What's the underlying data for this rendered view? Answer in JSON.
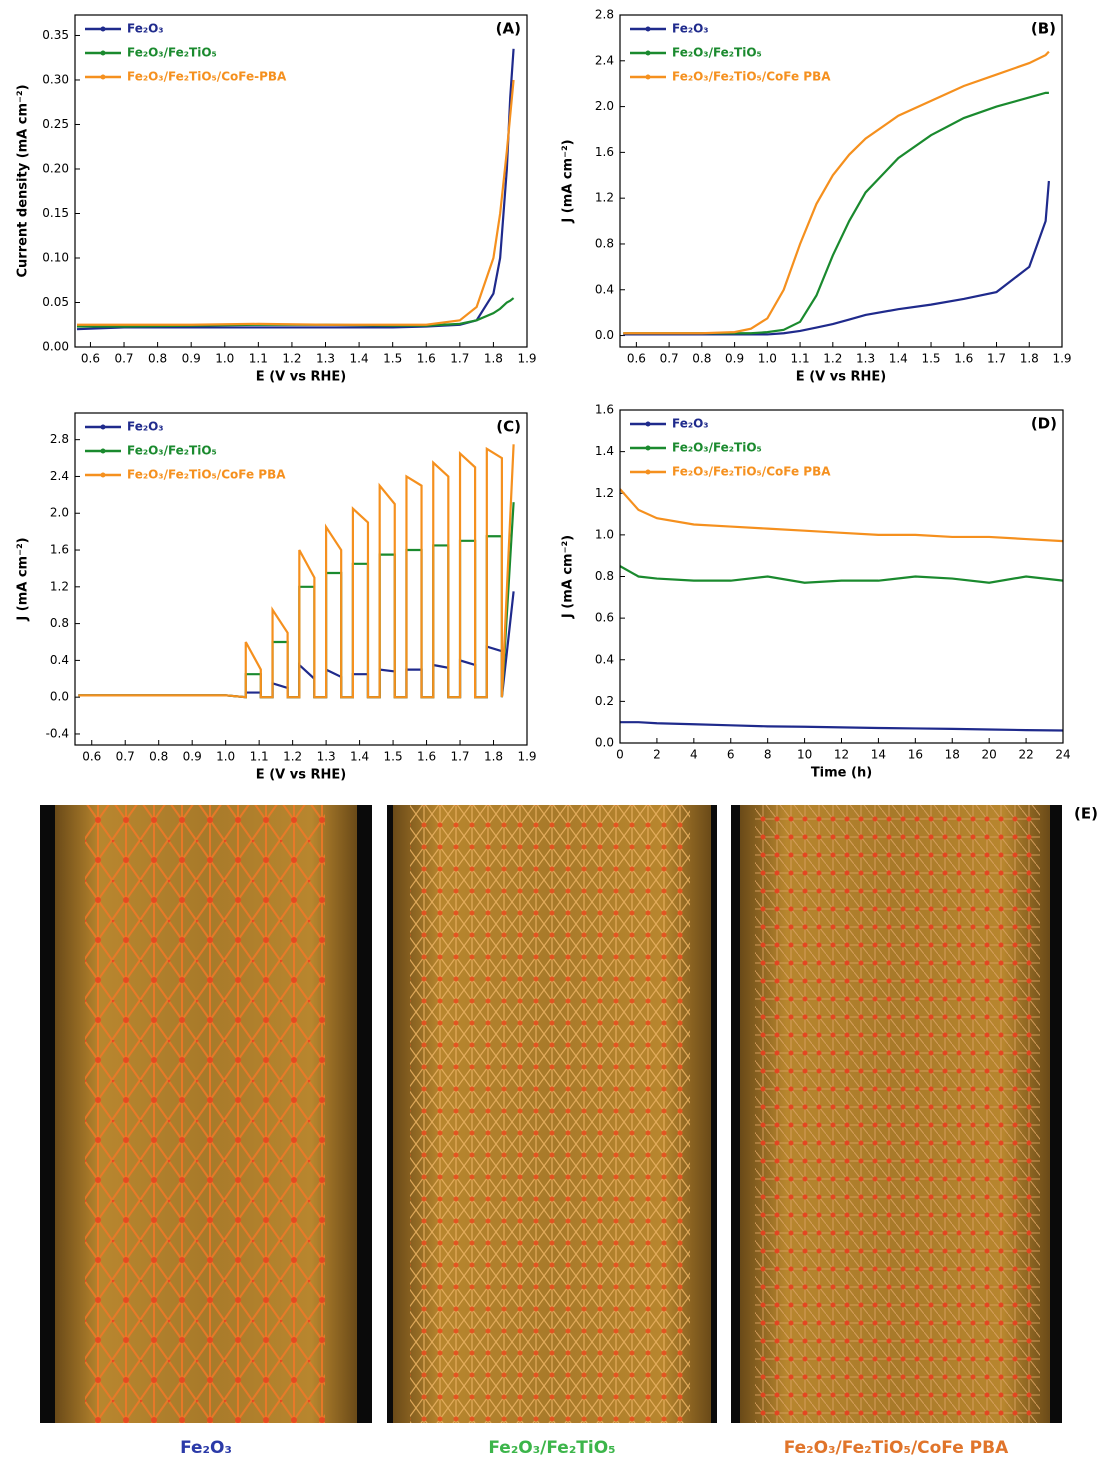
{
  "chart_data": [
    {
      "type": "line",
      "panel_label": "(A)",
      "x_label": "E (V vs RHE)",
      "y_label": "Current density (mA cm⁻²)",
      "legend": "upper left",
      "xlim": [
        0.554,
        1.9
      ],
      "ylim": [
        0,
        0.373
      ],
      "xticks": [
        0.6,
        0.7,
        0.8,
        0.9,
        {
          "value": 1.0,
          "label": "1.0"
        },
        1.1,
        1.2,
        1.3,
        1.4,
        1.5,
        1.6,
        1.7,
        1.8,
        1.9
      ],
      "yticks": [
        {
          "value": 0,
          "label": "0.00"
        },
        0.05,
        {
          "value": 0.1,
          "label": "0.10"
        },
        0.15,
        {
          "value": 0.2,
          "label": "0.20"
        },
        0.25,
        {
          "value": 0.3,
          "label": "0.30"
        },
        0.35
      ],
      "x": [
        0.56,
        0.7,
        0.9,
        1.1,
        1.3,
        1.5,
        1.6,
        1.7,
        1.75,
        1.8,
        1.82,
        1.84,
        1.85,
        1.86
      ],
      "series": [
        {
          "name": "Fe₂O₃",
          "color": "#1f2a8c",
          "values": [
            0.02,
            0.022,
            0.022,
            0.022,
            0.022,
            0.022,
            0.023,
            0.025,
            0.03,
            0.06,
            0.1,
            0.2,
            0.28,
            0.335
          ]
        },
        {
          "name": "Fe₂O₃/Fe₂TiO₅",
          "color": "#1a8a2e",
          "values": [
            0.023,
            0.023,
            0.024,
            0.025,
            0.025,
            0.024,
            0.024,
            0.026,
            0.03,
            0.038,
            0.043,
            0.05,
            0.052,
            0.055
          ]
        },
        {
          "name": "Fe₂O₃/Fe₂TiO₅/CoFe-PBA",
          "color": "#f5901e",
          "values": [
            0.025,
            0.025,
            0.025,
            0.026,
            0.025,
            0.025,
            0.025,
            0.03,
            0.045,
            0.1,
            0.15,
            0.22,
            0.26,
            0.3
          ]
        }
      ]
    },
    {
      "type": "line",
      "panel_label": "(B)",
      "x_label": "E (V vs RHE)",
      "y_label": "J (mA cm⁻²)",
      "legend": "upper left",
      "xlim": [
        0.55,
        1.9
      ],
      "ylim": [
        -0.1,
        2.8
      ],
      "xticks": [
        0.6,
        0.7,
        0.8,
        0.9,
        {
          "value": 1.0,
          "label": "1.0"
        },
        1.1,
        1.2,
        1.3,
        1.4,
        1.5,
        1.6,
        1.7,
        1.8,
        1.9
      ],
      "yticks": [
        {
          "value": 0,
          "label": "0.0"
        },
        0.4,
        0.8,
        1.2,
        1.6,
        {
          "value": 2.0,
          "label": "2.0"
        },
        2.4,
        2.8
      ],
      "x": [
        0.56,
        0.8,
        0.9,
        0.95,
        1.0,
        1.05,
        1.1,
        1.15,
        1.2,
        1.25,
        1.3,
        1.4,
        1.5,
        1.6,
        1.7,
        1.8,
        1.85,
        1.86
      ],
      "series": [
        {
          "name": "Fe₂O₃",
          "color": "#1f2a8c",
          "values": [
            0.01,
            0.01,
            0.01,
            0.01,
            0.01,
            0.02,
            0.04,
            0.07,
            0.1,
            0.14,
            0.18,
            0.23,
            0.27,
            0.32,
            0.38,
            0.6,
            1.0,
            1.35
          ]
        },
        {
          "name": "Fe₂O₃/Fe₂TiO₅",
          "color": "#1a8a2e",
          "values": [
            0.02,
            0.02,
            0.02,
            0.02,
            0.03,
            0.05,
            0.12,
            0.35,
            0.7,
            1.0,
            1.25,
            1.55,
            1.75,
            1.9,
            2.0,
            2.08,
            2.12,
            2.12
          ]
        },
        {
          "name": "Fe₂O₃/Fe₂TiO₅/CoFe PBA",
          "color": "#f5901e",
          "values": [
            0.02,
            0.02,
            0.03,
            0.06,
            0.15,
            0.4,
            0.8,
            1.15,
            1.4,
            1.58,
            1.72,
            1.92,
            2.05,
            2.18,
            2.28,
            2.38,
            2.45,
            2.48
          ]
        }
      ]
    },
    {
      "type": "line",
      "panel_label": "(C)",
      "x_label": "E (V vs RHE)",
      "y_label": "J (mA cm⁻²)",
      "legend": "upper left",
      "xlim": [
        0.55,
        1.9
      ],
      "ylim": [
        -0.52,
        3.09
      ],
      "xticks": [
        0.6,
        0.7,
        0.8,
        0.9,
        {
          "value": 1.0,
          "label": "1.0"
        },
        1.1,
        1.2,
        1.3,
        1.4,
        1.5,
        1.6,
        1.7,
        1.8,
        1.9
      ],
      "yticks": [
        -0.4,
        {
          "value": 0,
          "label": "0.0"
        },
        0.4,
        0.8,
        1.2,
        1.6,
        {
          "value": 2.0,
          "label": "2.0"
        },
        2.4,
        2.8
      ],
      "x": [
        0.56,
        1.0,
        1.06,
        1.06,
        1.105,
        1.105,
        1.14,
        1.14,
        1.185,
        1.185,
        1.22,
        1.22,
        1.265,
        1.265,
        1.3,
        1.3,
        1.345,
        1.345,
        1.38,
        1.38,
        1.425,
        1.425,
        1.46,
        1.46,
        1.505,
        1.505,
        1.54,
        1.54,
        1.585,
        1.585,
        1.62,
        1.62,
        1.665,
        1.665,
        1.7,
        1.7,
        1.745,
        1.745,
        1.78,
        1.78,
        1.825,
        1.825,
        1.86
      ],
      "series": [
        {
          "name": "Fe₂O₃",
          "color": "#1f2a8c",
          "values": [
            0.02,
            0.02,
            0,
            0.05,
            0.05,
            0,
            0,
            0.15,
            0.1,
            0,
            0,
            0.35,
            0.2,
            0,
            0,
            0.3,
            0.22,
            0,
            0,
            0.25,
            0.25,
            0,
            0,
            0.3,
            0.28,
            0,
            0,
            0.3,
            0.3,
            0,
            0,
            0.35,
            0.32,
            0,
            0,
            0.4,
            0.35,
            0,
            0,
            0.55,
            0.5,
            0,
            1.15
          ]
        },
        {
          "name": "Fe₂O₃/Fe₂TiO₅",
          "color": "#1a8a2e",
          "values": [
            0.02,
            0.02,
            0,
            0.25,
            0.25,
            0,
            0,
            0.6,
            0.6,
            0,
            0,
            1.2,
            1.2,
            0,
            0,
            1.35,
            1.35,
            0,
            0,
            1.45,
            1.45,
            0,
            0,
            1.55,
            1.55,
            0,
            0,
            1.6,
            1.6,
            0,
            0,
            1.65,
            1.65,
            0,
            0,
            1.7,
            1.7,
            0,
            0,
            1.75,
            1.75,
            0,
            2.12
          ]
        },
        {
          "name": "Fe₂O₃/Fe₂TiO₅/CoFe PBA",
          "color": "#f5901e",
          "values": [
            0.02,
            0.02,
            0,
            0.6,
            0.3,
            0,
            0,
            0.95,
            0.7,
            0,
            0,
            1.6,
            1.3,
            0,
            0,
            1.85,
            1.6,
            0,
            0,
            2.05,
            1.9,
            0,
            0,
            2.3,
            2.1,
            0,
            0,
            2.4,
            2.3,
            0,
            0,
            2.55,
            2.4,
            0,
            0,
            2.65,
            2.5,
            0,
            0,
            2.7,
            2.6,
            0,
            2.75
          ]
        }
      ]
    },
    {
      "type": "line",
      "panel_label": "(D)",
      "x_label": "Time (h)",
      "y_label": "J (mA cm⁻²)",
      "legend": "upper left",
      "xlim": [
        0,
        24
      ],
      "ylim": [
        0,
        1.6
      ],
      "xticks": [
        0,
        2,
        4,
        6,
        8,
        10,
        12,
        14,
        16,
        18,
        20,
        22,
        24
      ],
      "yticks": [
        {
          "value": 0,
          "label": "0.0"
        },
        0.2,
        0.4,
        0.6,
        0.8,
        {
          "value": 1.0,
          "label": "1.0"
        },
        1.2,
        1.4,
        1.6
      ],
      "x": [
        0,
        1,
        2,
        4,
        6,
        8,
        10,
        12,
        14,
        16,
        18,
        20,
        22,
        24
      ],
      "series": [
        {
          "name": "Fe₂O₃",
          "color": "#1f2a8c",
          "values": [
            0.1,
            0.1,
            0.095,
            0.09,
            0.085,
            0.08,
            0.078,
            0.075,
            0.072,
            0.07,
            0.068,
            0.065,
            0.062,
            0.06
          ]
        },
        {
          "name": "Fe₂O₃/Fe₂TiO₅",
          "color": "#1a8a2e",
          "values": [
            0.85,
            0.8,
            0.79,
            0.78,
            0.78,
            0.8,
            0.77,
            0.78,
            0.78,
            0.8,
            0.79,
            0.77,
            0.8,
            0.78
          ]
        },
        {
          "name": "Fe₂O₃/Fe₂TiO₅/CoFe PBA",
          "color": "#f5901e",
          "values": [
            1.22,
            1.12,
            1.08,
            1.05,
            1.04,
            1.03,
            1.02,
            1.01,
            1.0,
            1.0,
            0.99,
            0.99,
            0.98,
            0.97
          ]
        }
      ]
    }
  ],
  "panel_e": {
    "label": "(E)",
    "captions": [
      {
        "text": "Fe₂O₃",
        "color": "#2b3aa8"
      },
      {
        "text": "Fe₂O₃/Fe₂TiO₅",
        "color": "#3cb54a"
      },
      {
        "text": "Fe₂O₃/Fe₂TiO₅/CoFe PBA",
        "color": "#e0742a"
      }
    ]
  }
}
